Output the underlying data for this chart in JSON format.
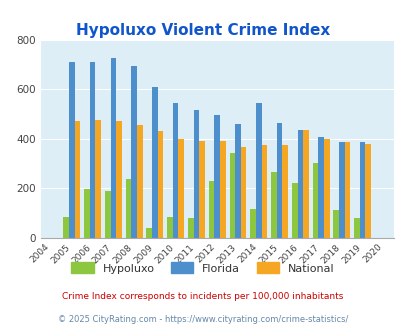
{
  "title": "Hypoluxo Violent Crime Index",
  "years": [
    2004,
    2005,
    2006,
    2007,
    2008,
    2009,
    2010,
    2011,
    2012,
    2013,
    2014,
    2015,
    2016,
    2017,
    2018,
    2019,
    2020
  ],
  "hypoluxo": [
    null,
    85,
    195,
    190,
    235,
    40,
    85,
    80,
    230,
    340,
    115,
    265,
    220,
    300,
    110,
    80,
    null
  ],
  "florida": [
    null,
    710,
    710,
    725,
    695,
    610,
    545,
    515,
    495,
    460,
    545,
    465,
    435,
    405,
    385,
    385,
    null
  ],
  "national": [
    null,
    470,
    475,
    470,
    455,
    430,
    400,
    390,
    390,
    365,
    375,
    375,
    435,
    400,
    385,
    380,
    null
  ],
  "hypoluxo_color": "#8dc63f",
  "florida_color": "#4d8fcc",
  "national_color": "#f5a623",
  "plot_bg": "#ddeef6",
  "ylim": [
    0,
    800
  ],
  "yticks": [
    0,
    200,
    400,
    600,
    800
  ],
  "legend_labels": [
    "Hypoluxo",
    "Florida",
    "National"
  ],
  "footnote1": "Crime Index corresponds to incidents per 100,000 inhabitants",
  "footnote2": "© 2025 CityRating.com - https://www.cityrating.com/crime-statistics/",
  "title_color": "#1155cc",
  "footnote1_color": "#cc0000",
  "footnote2_color": "#6688aa",
  "bar_width": 0.27
}
